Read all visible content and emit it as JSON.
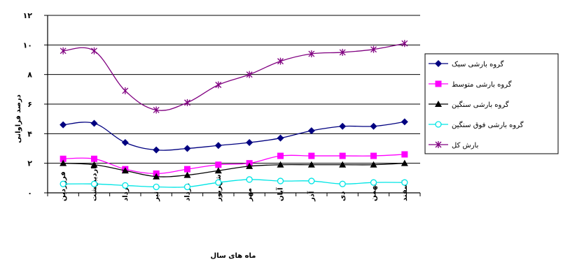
{
  "chart_data": {
    "type": "line",
    "xlabel": "ماه های سال",
    "ylabel": "درصد فراوانی",
    "ylim": [
      0,
      12
    ],
    "yticks": [
      "۰",
      "۲",
      "۴",
      "۶",
      "۸",
      "۱۰",
      "۱۲"
    ],
    "grid": "horizontal",
    "legend": "right",
    "categories": [
      "فروردین",
      "اردیبهشت",
      "خرداد",
      "تیر",
      "مرداد",
      "شهریور",
      "مهر",
      "آبان",
      "آذر",
      "دی",
      "بهمن",
      "اسفند"
    ],
    "series": [
      {
        "name": "گروه بارشی سبک",
        "color": "#000080",
        "marker": "diamond",
        "values": [
          4.6,
          4.7,
          3.4,
          2.9,
          3.0,
          3.2,
          3.4,
          3.7,
          4.2,
          4.5,
          4.5,
          4.8
        ]
      },
      {
        "name": "گروه بارشی متوسط",
        "color": "#ff00ff",
        "marker": "square",
        "values": [
          2.3,
          2.3,
          1.6,
          1.3,
          1.6,
          1.9,
          2.0,
          2.5,
          2.5,
          2.5,
          2.5,
          2.6
        ]
      },
      {
        "name": "گروه بارشی سنگین",
        "color": "#000000",
        "marker": "triangle",
        "values": [
          2.0,
          1.9,
          1.5,
          1.1,
          1.2,
          1.5,
          1.8,
          1.9,
          1.9,
          1.9,
          1.9,
          2.0
        ]
      },
      {
        "name": "گروه بارشی فوق سنگین",
        "color": "#00e5e5",
        "marker": "circle",
        "values": [
          0.6,
          0.6,
          0.5,
          0.4,
          0.4,
          0.7,
          0.9,
          0.8,
          0.8,
          0.6,
          0.7,
          0.7
        ]
      },
      {
        "name": "بارش کل",
        "color": "#800080",
        "marker": "star",
        "values": [
          9.6,
          9.6,
          6.9,
          5.6,
          6.1,
          7.3,
          8.0,
          8.9,
          9.4,
          9.5,
          9.7,
          10.1
        ]
      }
    ]
  }
}
